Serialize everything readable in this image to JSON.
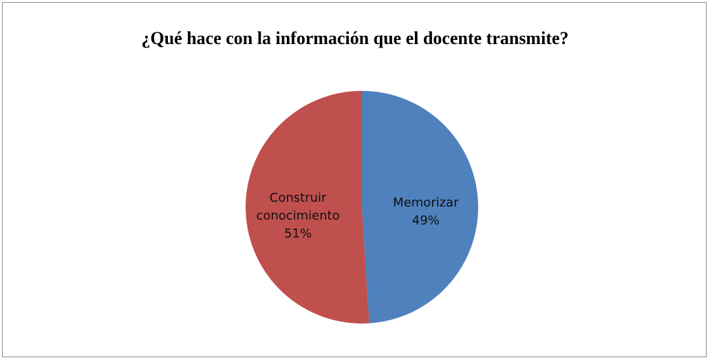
{
  "chart_data": {
    "type": "pie",
    "title": "¿Qué hace con la información que el docente transmite?",
    "categories": [
      "Memorizar",
      "Construir conocimiento"
    ],
    "values": [
      49,
      51
    ],
    "value_labels": [
      "49%",
      "51%"
    ],
    "colors": [
      "#4f81bd",
      "#c0504d"
    ]
  }
}
